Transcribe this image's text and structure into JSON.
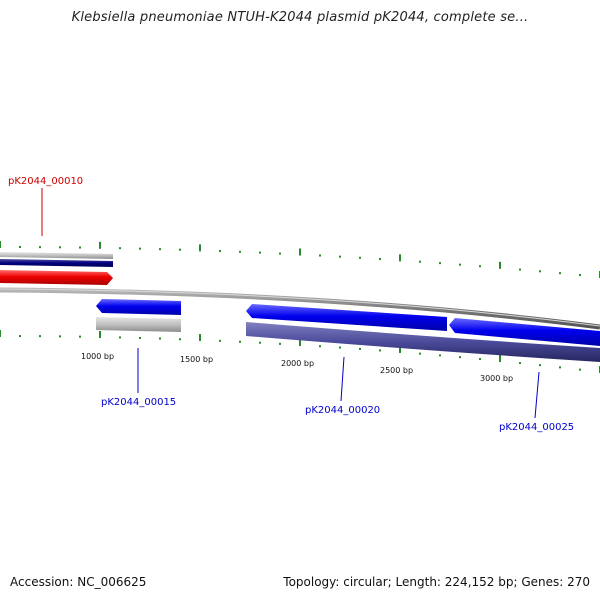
{
  "title": "Klebsiella pneumoniae NTUH-K2044 plasmid pK2044, complete se...",
  "footer": {
    "accession": "Accession: NC_006625",
    "summary": "Topology: circular; Length: 224,152 bp; Genes: 270"
  },
  "colors": {
    "backbone": "#808080",
    "tick": "#2a8a2a",
    "forward_cds": "#0000ee",
    "reverse_cds": "#ee0000",
    "forward_gene": "#c0c0c0",
    "reverse_gene": "#3a3a8c",
    "label_forward": "#0000cc",
    "label_reverse": "#cc0000"
  },
  "scale_labels": [
    {
      "bp": 1000,
      "text": "1000 bp"
    },
    {
      "bp": 1500,
      "text": "1500 bp"
    },
    {
      "bp": 2000,
      "text": "2000 bp"
    },
    {
      "bp": 2500,
      "text": "2500 bp"
    },
    {
      "bp": 3000,
      "text": "3000 bp"
    }
  ],
  "gene_labels": [
    {
      "id": "pK2044_00010",
      "text": "pK2044_00010",
      "strand": "reverse"
    },
    {
      "id": "pK2044_00015",
      "text": "pK2044_00015",
      "strand": "forward"
    },
    {
      "id": "pK2044_00020",
      "text": "pK2044_00020",
      "strand": "forward"
    },
    {
      "id": "pK2044_00025",
      "text": "pK2044_00025",
      "strand": "forward"
    }
  ]
}
